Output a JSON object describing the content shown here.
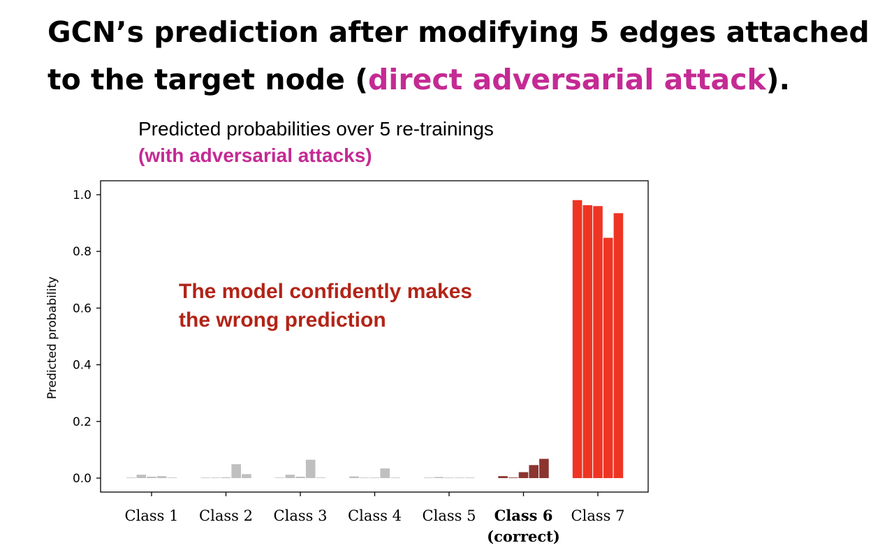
{
  "slide": {
    "title_part1": "GCN’s prediction after modifying 5 edges attached to the target node (",
    "title_highlight": "direct adversarial attack",
    "title_part2": ")."
  },
  "colors": {
    "highlight": "#c42a94",
    "bar_default": "#bfbfbf",
    "bar_correct": "#8b3530",
    "bar_predicted": "#ee3524",
    "annotation": "#b22418"
  },
  "chart_data": {
    "type": "bar",
    "title": "Predicted probabilities over 5 re-trainings",
    "subtitle": "(with adversarial attacks)",
    "ylabel": "Predicted probability",
    "xlabel": "",
    "ylim": [
      0,
      1.0
    ],
    "yticks": [
      "0.0",
      "0.2",
      "0.4",
      "0.6",
      "0.8",
      "1.0"
    ],
    "grid": false,
    "categories": [
      "Class 1",
      "Class 2",
      "Class 3",
      "Class 4",
      "Class 5",
      "Class 6",
      "Class 7"
    ],
    "correct_class": {
      "category": "Class 6",
      "note": "(correct)"
    },
    "series": [
      {
        "values": [
          0.002,
          0.001,
          0.001,
          0.006,
          0.001,
          0.007,
          0.981
        ]
      },
      {
        "values": [
          0.012,
          0.001,
          0.012,
          0.001,
          0.004,
          0.002,
          0.963
        ]
      },
      {
        "values": [
          0.005,
          0.003,
          0.005,
          0.002,
          0.002,
          0.021,
          0.96
        ]
      },
      {
        "values": [
          0.007,
          0.049,
          0.065,
          0.034,
          0.002,
          0.046,
          0.848
        ]
      },
      {
        "values": [
          0.002,
          0.014,
          0.002,
          0.002,
          0.002,
          0.068,
          0.935
        ]
      }
    ],
    "annotation": {
      "line1": "The model confidently makes",
      "line2": "the wrong prediction"
    }
  }
}
